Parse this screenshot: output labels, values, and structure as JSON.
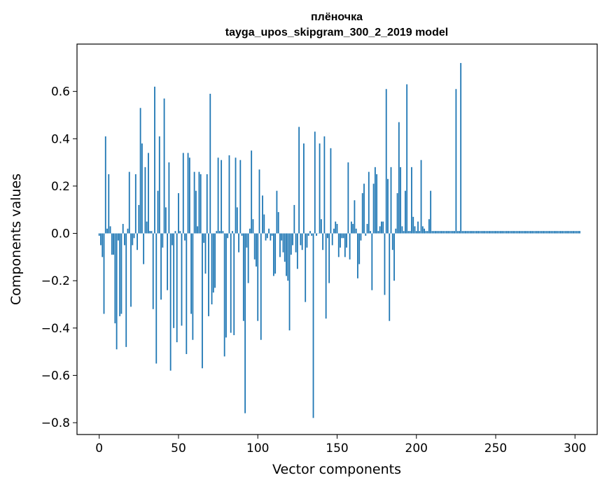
{
  "chart_data": {
    "type": "bar",
    "title": "плёночка",
    "subtitle": "tayga_upos_skipgram_300_2_2019 model",
    "xlabel": "Vector components",
    "ylabel": "Components values",
    "xlim": [
      -14,
      314
    ],
    "ylim": [
      -0.85,
      0.8
    ],
    "xticks": [
      0,
      50,
      100,
      150,
      200,
      250,
      300
    ],
    "xtick_labels": [
      "0",
      "50",
      "100",
      "150",
      "200",
      "250",
      "300"
    ],
    "yticks": [
      -0.8,
      -0.6,
      -0.4,
      -0.2,
      0.0,
      0.2,
      0.4,
      0.6
    ],
    "ytick_labels": [
      "−0.8",
      "−0.6",
      "−0.4",
      "−0.2",
      "0.0",
      "0.2",
      "0.4",
      "0.6"
    ],
    "grid": false,
    "bar_color": "#1f77b4",
    "series": [
      {
        "values": [
          -0.01,
          -0.05,
          -0.1,
          -0.34,
          0.41,
          0.02,
          0.25,
          0.03,
          -0.09,
          -0.09,
          -0.38,
          -0.49,
          -0.03,
          -0.35,
          -0.34,
          0.04,
          -0.05,
          -0.48,
          0.02,
          0.26,
          -0.31,
          -0.05,
          -0.02,
          0.25,
          -0.07,
          0.12,
          0.53,
          0.38,
          -0.13,
          0.28,
          0.05,
          0.34,
          0.01,
          0.01,
          -0.32,
          0.62,
          -0.55,
          0.18,
          0.41,
          -0.28,
          -0.06,
          0.57,
          0.11,
          -0.24,
          0.3,
          -0.58,
          -0.05,
          -0.4,
          0.01,
          -0.46,
          0.17,
          0.01,
          -0.39,
          0.34,
          -0.03,
          -0.51,
          0.34,
          0.32,
          -0.34,
          -0.45,
          0.26,
          0.18,
          0.03,
          0.26,
          0.25,
          -0.57,
          -0.04,
          -0.17,
          0.25,
          -0.35,
          0.59,
          -0.3,
          -0.25,
          -0.23,
          0.01,
          0.32,
          0.01,
          0.31,
          0.01,
          -0.52,
          -0.44,
          -0.02,
          0.33,
          -0.42,
          0.01,
          -0.43,
          0.32,
          0.11,
          -0.08,
          0.31,
          -0.01,
          -0.37,
          -0.76,
          -0.06,
          -0.21,
          0.02,
          0.35,
          0.06,
          -0.11,
          -0.14,
          -0.37,
          0.27,
          -0.45,
          0.16,
          0.08,
          -0.03,
          -0.02,
          0.02,
          -0.03,
          -0.01,
          -0.18,
          -0.17,
          0.18,
          0.09,
          -0.1,
          -0.03,
          -0.08,
          -0.12,
          -0.18,
          -0.2,
          -0.41,
          -0.09,
          -0.05,
          0.12,
          -0.08,
          -0.15,
          0.45,
          -0.05,
          -0.07,
          0.38,
          -0.29,
          -0.06,
          -0.01,
          0.01,
          -0.01,
          -0.78,
          0.43,
          -0.01,
          0.0,
          0.38,
          0.06,
          -0.07,
          0.41,
          -0.36,
          -0.02,
          -0.21,
          0.36,
          -0.05,
          0.02,
          0.05,
          0.04,
          -0.1,
          -0.06,
          -0.02,
          -0.02,
          -0.1,
          -0.06,
          0.3,
          -0.11,
          0.05,
          0.04,
          0.14,
          0.02,
          -0.19,
          -0.13,
          -0.03,
          0.17,
          0.21,
          -0.01,
          0.04,
          0.26,
          0.01,
          -0.24,
          0.21,
          0.28,
          0.25,
          0.01,
          0.03,
          0.05,
          0.05,
          -0.26,
          0.61,
          0.23,
          -0.37,
          0.28,
          -0.07,
          -0.2,
          0.02,
          0.17,
          0.47,
          0.28,
          0.03,
          0.01,
          0.18,
          0.63,
          0.01,
          0.01,
          0.28,
          0.07,
          0.03,
          0.01,
          0.05,
          0.01,
          0.31,
          0.03,
          0.02,
          0.01,
          0.01,
          0.06,
          0.18,
          0.01,
          0.01,
          0.01,
          0.01,
          0.01,
          0.01,
          0.01,
          0.01,
          0.01,
          0.01,
          0.01,
          0.01,
          0.01,
          0.01,
          0.01,
          0.61,
          0.01,
          0.01,
          0.72,
          0.01,
          0.01,
          0.01,
          0.01,
          0.01,
          0.01,
          0.01,
          0.01,
          0.01,
          0.01,
          0.01,
          0.01,
          0.01,
          0.01,
          0.01,
          0.01,
          0.01,
          0.01,
          0.01,
          0.01,
          0.01,
          0.01,
          0.01,
          0.01,
          0.01,
          0.01,
          0.01,
          0.01,
          0.01,
          0.01,
          0.01,
          0.01,
          0.01,
          0.01,
          0.01,
          0.01,
          0.01,
          0.01,
          0.01,
          0.01,
          0.01,
          0.01,
          0.01,
          0.01,
          0.01,
          0.01,
          0.01,
          0.01,
          0.01,
          0.01,
          0.01,
          0.01,
          0.01,
          0.01,
          0.01,
          0.01,
          0.01,
          0.01,
          0.01,
          0.01,
          0.01,
          0.01,
          0.01,
          0.01,
          0.01,
          0.01,
          0.01,
          0.01,
          0.01,
          0.01,
          0.01,
          0.01,
          0.01,
          0.01,
          0.01
        ]
      }
    ]
  }
}
